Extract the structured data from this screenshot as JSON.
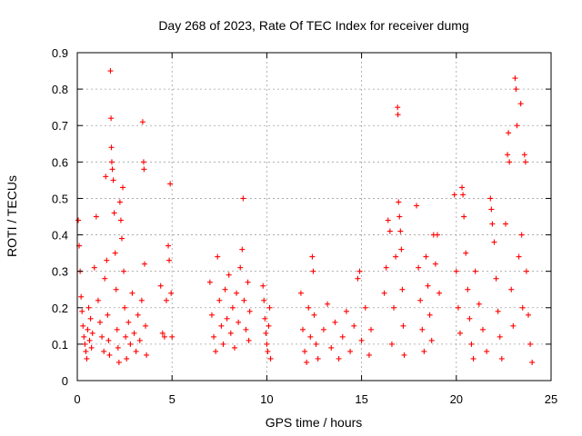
{
  "chart_data": {
    "type": "scatter",
    "title": "Day 268 of 2023, Rate Of TEC Index for receiver dumg",
    "xlabel": "GPS time / hours",
    "ylabel": "ROTI / TECUs",
    "xlim": [
      0,
      25
    ],
    "ylim": [
      0,
      0.9
    ],
    "xticks": [
      "0",
      "5",
      "10",
      "15",
      "20",
      "25"
    ],
    "yticks": [
      "0",
      "0.1",
      "0.2",
      "0.3",
      "0.4",
      "0.5",
      "0.6",
      "0.7",
      "0.8",
      "0.9"
    ],
    "grid": true,
    "marker": "+",
    "color": "#ff0000",
    "series": [
      {
        "points": [
          [
            0.05,
            0.44
          ],
          [
            0.1,
            0.37
          ],
          [
            0.15,
            0.3
          ],
          [
            0.2,
            0.23
          ],
          [
            0.25,
            0.19
          ],
          [
            0.3,
            0.15
          ],
          [
            0.35,
            0.12
          ],
          [
            0.4,
            0.1
          ],
          [
            0.45,
            0.08
          ],
          [
            0.5,
            0.06
          ],
          [
            0.55,
            0.14
          ],
          [
            0.6,
            0.2
          ],
          [
            0.65,
            0.11
          ],
          [
            0.7,
            0.17
          ],
          [
            0.75,
            0.09
          ],
          [
            0.8,
            0.13
          ],
          [
            0.9,
            0.31
          ],
          [
            1.0,
            0.45
          ],
          [
            1.1,
            0.22
          ],
          [
            1.2,
            0.16
          ],
          [
            1.3,
            0.12
          ],
          [
            1.4,
            0.08
          ],
          [
            1.45,
            0.28
          ],
          [
            1.5,
            0.56
          ],
          [
            1.55,
            0.33
          ],
          [
            1.6,
            0.18
          ],
          [
            1.65,
            0.11
          ],
          [
            1.7,
            0.07
          ],
          [
            1.75,
            0.85
          ],
          [
            1.78,
            0.72
          ],
          [
            1.8,
            0.64
          ],
          [
            1.82,
            0.6
          ],
          [
            1.85,
            0.58
          ],
          [
            1.9,
            0.55
          ],
          [
            1.95,
            0.46
          ],
          [
            2.0,
            0.35
          ],
          [
            2.05,
            0.25
          ],
          [
            2.1,
            0.14
          ],
          [
            2.15,
            0.09
          ],
          [
            2.2,
            0.05
          ],
          [
            2.25,
            0.49
          ],
          [
            2.3,
            0.44
          ],
          [
            2.35,
            0.39
          ],
          [
            2.4,
            0.53
          ],
          [
            2.45,
            0.3
          ],
          [
            2.5,
            0.2
          ],
          [
            2.55,
            0.12
          ],
          [
            2.6,
            0.06
          ],
          [
            2.7,
            0.16
          ],
          [
            2.8,
            0.1
          ],
          [
            2.9,
            0.24
          ],
          [
            3.0,
            0.13
          ],
          [
            3.1,
            0.08
          ],
          [
            3.2,
            0.18
          ],
          [
            3.3,
            0.11
          ],
          [
            3.4,
            0.22
          ],
          [
            3.45,
            0.71
          ],
          [
            3.5,
            0.6
          ],
          [
            3.52,
            0.58
          ],
          [
            3.55,
            0.32
          ],
          [
            3.6,
            0.15
          ],
          [
            3.65,
            0.07
          ],
          [
            4.4,
            0.26
          ],
          [
            4.5,
            0.13
          ],
          [
            4.6,
            0.12
          ],
          [
            4.7,
            0.22
          ],
          [
            4.8,
            0.37
          ],
          [
            4.85,
            0.33
          ],
          [
            4.9,
            0.54
          ],
          [
            4.95,
            0.24
          ],
          [
            5.0,
            0.12
          ],
          [
            7.0,
            0.27
          ],
          [
            7.1,
            0.18
          ],
          [
            7.2,
            0.12
          ],
          [
            7.3,
            0.08
          ],
          [
            7.4,
            0.34
          ],
          [
            7.5,
            0.22
          ],
          [
            7.6,
            0.15
          ],
          [
            7.7,
            0.1
          ],
          [
            7.8,
            0.25
          ],
          [
            7.9,
            0.17
          ],
          [
            8.0,
            0.29
          ],
          [
            8.1,
            0.13
          ],
          [
            8.2,
            0.2
          ],
          [
            8.3,
            0.09
          ],
          [
            8.4,
            0.24
          ],
          [
            8.5,
            0.16
          ],
          [
            8.6,
            0.31
          ],
          [
            8.7,
            0.36
          ],
          [
            8.75,
            0.5
          ],
          [
            8.8,
            0.22
          ],
          [
            8.9,
            0.14
          ],
          [
            9.0,
            0.27
          ],
          [
            9.05,
            0.11
          ],
          [
            9.1,
            0.19
          ],
          [
            9.8,
            0.26
          ],
          [
            9.85,
            0.22
          ],
          [
            9.9,
            0.17
          ],
          [
            9.95,
            0.13
          ],
          [
            10.0,
            0.1
          ],
          [
            10.05,
            0.08
          ],
          [
            10.1,
            0.15
          ],
          [
            10.15,
            0.2
          ],
          [
            10.2,
            0.06
          ],
          [
            11.8,
            0.24
          ],
          [
            11.9,
            0.14
          ],
          [
            12.0,
            0.08
          ],
          [
            12.1,
            0.05
          ],
          [
            12.2,
            0.2
          ],
          [
            12.3,
            0.12
          ],
          [
            12.4,
            0.34
          ],
          [
            12.45,
            0.3
          ],
          [
            12.5,
            0.18
          ],
          [
            12.6,
            0.1
          ],
          [
            12.7,
            0.06
          ],
          [
            13.0,
            0.14
          ],
          [
            13.2,
            0.21
          ],
          [
            13.4,
            0.09
          ],
          [
            13.6,
            0.16
          ],
          [
            13.8,
            0.06
          ],
          [
            14.0,
            0.12
          ],
          [
            14.2,
            0.19
          ],
          [
            14.4,
            0.08
          ],
          [
            14.6,
            0.15
          ],
          [
            14.8,
            0.28
          ],
          [
            14.9,
            0.3
          ],
          [
            15.0,
            0.11
          ],
          [
            15.2,
            0.2
          ],
          [
            15.4,
            0.07
          ],
          [
            15.5,
            0.14
          ],
          [
            16.2,
            0.24
          ],
          [
            16.3,
            0.31
          ],
          [
            16.4,
            0.44
          ],
          [
            16.5,
            0.41
          ],
          [
            16.6,
            0.1
          ],
          [
            16.7,
            0.2
          ],
          [
            16.8,
            0.34
          ],
          [
            16.9,
            0.75
          ],
          [
            16.92,
            0.73
          ],
          [
            16.95,
            0.49
          ],
          [
            17.0,
            0.45
          ],
          [
            17.05,
            0.41
          ],
          [
            17.1,
            0.36
          ],
          [
            17.15,
            0.25
          ],
          [
            17.2,
            0.15
          ],
          [
            17.25,
            0.07
          ],
          [
            17.9,
            0.48
          ],
          [
            18.0,
            0.31
          ],
          [
            18.1,
            0.22
          ],
          [
            18.2,
            0.14
          ],
          [
            18.3,
            0.08
          ],
          [
            18.4,
            0.34
          ],
          [
            18.5,
            0.26
          ],
          [
            18.6,
            0.18
          ],
          [
            18.7,
            0.11
          ],
          [
            18.8,
            0.4
          ],
          [
            18.9,
            0.32
          ],
          [
            19.0,
            0.4
          ],
          [
            19.1,
            0.24
          ],
          [
            19.9,
            0.51
          ],
          [
            20.0,
            0.3
          ],
          [
            20.1,
            0.2
          ],
          [
            20.2,
            0.13
          ],
          [
            20.3,
            0.53
          ],
          [
            20.35,
            0.51
          ],
          [
            20.4,
            0.45
          ],
          [
            20.5,
            0.35
          ],
          [
            20.6,
            0.25
          ],
          [
            20.7,
            0.17
          ],
          [
            20.8,
            0.1
          ],
          [
            20.9,
            0.06
          ],
          [
            21.0,
            0.3
          ],
          [
            21.2,
            0.21
          ],
          [
            21.4,
            0.14
          ],
          [
            21.6,
            0.08
          ],
          [
            21.8,
            0.5
          ],
          [
            21.85,
            0.47
          ],
          [
            21.9,
            0.43
          ],
          [
            22.0,
            0.38
          ],
          [
            22.1,
            0.28
          ],
          [
            22.2,
            0.19
          ],
          [
            22.3,
            0.12
          ],
          [
            22.4,
            0.06
          ],
          [
            22.6,
            0.43
          ],
          [
            22.7,
            0.62
          ],
          [
            22.75,
            0.68
          ],
          [
            22.8,
            0.6
          ],
          [
            22.9,
            0.25
          ],
          [
            23.0,
            0.15
          ],
          [
            23.1,
            0.83
          ],
          [
            23.15,
            0.8
          ],
          [
            23.2,
            0.7
          ],
          [
            23.3,
            0.34
          ],
          [
            23.4,
            0.76
          ],
          [
            23.45,
            0.4
          ],
          [
            23.5,
            0.2
          ],
          [
            23.6,
            0.62
          ],
          [
            23.65,
            0.6
          ],
          [
            23.7,
            0.3
          ],
          [
            23.8,
            0.18
          ],
          [
            23.9,
            0.1
          ],
          [
            24.0,
            0.05
          ]
        ]
      }
    ]
  }
}
